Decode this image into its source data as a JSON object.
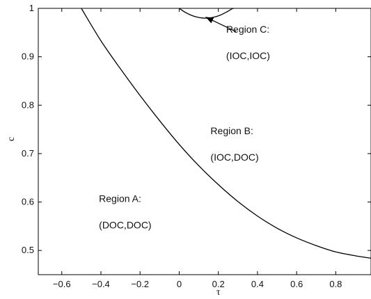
{
  "chart_data": {
    "type": "line",
    "title": "",
    "xlabel": "τ",
    "ylabel": "c",
    "xlim": [
      -0.72,
      0.98
    ],
    "ylim": [
      0.45,
      1.0
    ],
    "xticks": [
      -0.6,
      -0.4,
      -0.2,
      0,
      0.2,
      0.4,
      0.6,
      0.8
    ],
    "xtick_labels": [
      "−0.6",
      "−0.4",
      "−0.2",
      "0",
      "0.2",
      "0.4",
      "0.6",
      "0.8"
    ],
    "yticks": [
      0.5,
      0.6,
      0.7,
      0.8,
      0.9,
      1.0
    ],
    "ytick_labels": [
      "0.5",
      "0.6",
      "0.7",
      "0.8",
      "0.9",
      "1"
    ],
    "grid": false,
    "legend": "none",
    "series": [
      {
        "x": [
          -0.5,
          -0.4,
          -0.3,
          -0.2,
          -0.1,
          0.0,
          0.1,
          0.2,
          0.3,
          0.4,
          0.5,
          0.6,
          0.7,
          0.8,
          0.9,
          0.98
        ],
        "y": [
          1.0,
          0.933,
          0.875,
          0.82,
          0.768,
          0.719,
          0.675,
          0.636,
          0.601,
          0.571,
          0.546,
          0.526,
          0.51,
          0.497,
          0.489,
          0.484
        ]
      },
      {
        "x": [
          0.0,
          0.03,
          0.06,
          0.09,
          0.12,
          0.15,
          0.18,
          0.21,
          0.24,
          0.27,
          0.28
        ],
        "y": [
          1.0,
          0.992,
          0.986,
          0.982,
          0.98,
          0.98,
          0.982,
          0.986,
          0.992,
          0.999,
          1.0
        ]
      }
    ],
    "annotations": [
      {
        "id": "region-a",
        "title": "Region A:",
        "subtitle": "(DOC,DOC)",
        "x": -0.41,
        "y": 0.6
      },
      {
        "id": "region-b",
        "title": "Region B:",
        "subtitle": "(IOC,DOC)",
        "x": 0.16,
        "y": 0.74
      },
      {
        "id": "region-c",
        "title": "Region C:",
        "subtitle": "(IOC,IOC)",
        "x": 0.24,
        "y": 0.95
      }
    ],
    "arrow": {
      "from": [
        0.29,
        0.952
      ],
      "to": [
        0.135,
        0.982
      ]
    }
  }
}
